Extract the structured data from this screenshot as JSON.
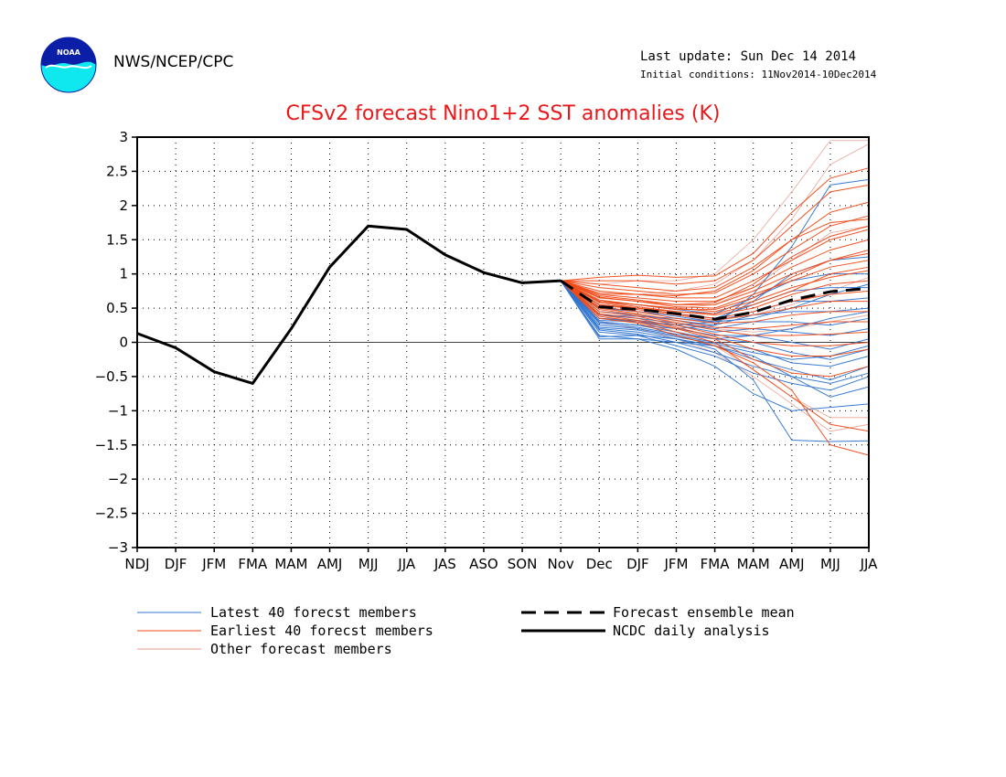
{
  "header": {
    "agency": "NWS/NCEP/CPC",
    "last_update": "Last update: Sun Dec 14 2014",
    "initial_conditions": "Initial conditions: 11Nov2014-10Dec2014"
  },
  "logo": {
    "text": "NOAA"
  },
  "colors": {
    "latest": "#2f74d0",
    "earliest": "#f04a17",
    "other": "#e59a8b",
    "title": "#e8191a",
    "axis": "#000000"
  },
  "chart_data": {
    "type": "line",
    "title": "CFSv2 forecast Nino1+2 SST anomalies (K)",
    "xlabel": "",
    "ylabel": "",
    "categories": [
      "NDJ",
      "DJF",
      "JFM",
      "FMA",
      "MAM",
      "AMJ",
      "MJJ",
      "JJA",
      "JAS",
      "ASO",
      "SON",
      "Nov",
      "Dec",
      "DJF",
      "JFM",
      "FMA",
      "MAM",
      "AMJ",
      "MJJ",
      "JJA"
    ],
    "ylim": [
      -3,
      3
    ],
    "yticks": [
      3,
      2.5,
      2,
      1.5,
      1,
      0.5,
      0,
      -0.5,
      -1,
      -1.5,
      -2,
      -2.5,
      -3
    ],
    "grid": true,
    "legend_position": "bottom",
    "legend": {
      "latest": "Latest 40 forecst members",
      "earliest": "Earliest 40 forecst members",
      "other": "Other forecast members",
      "mean": "Forecast ensemble mean",
      "analysis": "NCDC daily analysis"
    },
    "analysis": {
      "x": [
        "NDJ",
        "DJF",
        "JFM",
        "FMA",
        "MAM",
        "AMJ",
        "MJJ",
        "JJA",
        "JAS",
        "ASO",
        "SON",
        "Nov"
      ],
      "values": [
        0.13,
        -0.08,
        -0.43,
        -0.6,
        0.2,
        1.1,
        1.7,
        1.65,
        1.28,
        1.02,
        0.87,
        0.9
      ]
    },
    "ensemble_mean": {
      "x": [
        "Nov",
        "Dec",
        "DJF",
        "JFM",
        "FMA",
        "MAM",
        "AMJ",
        "MJJ",
        "JJA"
      ],
      "values": [
        0.9,
        0.52,
        0.48,
        0.42,
        0.34,
        0.44,
        0.62,
        0.74,
        0.79
      ]
    },
    "member_x": [
      "Nov",
      "Dec",
      "DJF",
      "JFM",
      "FMA",
      "MAM",
      "AMJ",
      "MJJ",
      "JJA"
    ],
    "members": [
      {
        "group": "latest",
        "values": [
          0.9,
          0.08,
          0.1,
          0.05,
          -0.1,
          -0.55,
          -1.43,
          -1.45,
          -1.44
        ]
      },
      {
        "group": "latest",
        "values": [
          0.9,
          0.1,
          0.05,
          -0.1,
          -0.35,
          -0.75,
          -1.0,
          -0.95,
          -0.9
        ]
      },
      {
        "group": "latest",
        "values": [
          0.9,
          0.15,
          0.1,
          -0.05,
          -0.2,
          -0.45,
          -0.6,
          -0.7,
          -0.5
        ]
      },
      {
        "group": "latest",
        "values": [
          0.9,
          0.2,
          0.15,
          0.05,
          -0.05,
          -0.25,
          -0.4,
          -0.55,
          -0.35
        ]
      },
      {
        "group": "latest",
        "values": [
          0.9,
          0.25,
          0.2,
          0.1,
          0.0,
          -0.1,
          -0.3,
          -0.35,
          -0.2
        ]
      },
      {
        "group": "latest",
        "values": [
          0.9,
          0.3,
          0.25,
          0.15,
          0.05,
          0.0,
          -0.15,
          -0.25,
          -0.1
        ]
      },
      {
        "group": "latest",
        "values": [
          0.9,
          0.32,
          0.3,
          0.2,
          0.1,
          0.1,
          0.0,
          -0.1,
          0.05
        ]
      },
      {
        "group": "latest",
        "values": [
          0.9,
          0.35,
          0.32,
          0.25,
          0.15,
          0.2,
          0.15,
          0.1,
          0.2
        ]
      },
      {
        "group": "latest",
        "values": [
          0.9,
          0.4,
          0.35,
          0.28,
          0.2,
          0.3,
          0.3,
          0.25,
          0.35
        ]
      },
      {
        "group": "latest",
        "values": [
          0.9,
          0.45,
          0.4,
          0.32,
          0.25,
          0.4,
          0.45,
          0.45,
          0.5
        ]
      },
      {
        "group": "latest",
        "values": [
          0.9,
          0.5,
          0.45,
          0.38,
          0.3,
          0.45,
          0.6,
          0.6,
          0.65
        ]
      },
      {
        "group": "latest",
        "values": [
          0.9,
          0.55,
          0.5,
          0.42,
          0.35,
          0.55,
          0.75,
          0.8,
          0.8
        ]
      },
      {
        "group": "latest",
        "values": [
          0.9,
          0.6,
          0.55,
          0.48,
          0.42,
          0.65,
          0.9,
          1.0,
          1.0
        ]
      },
      {
        "group": "latest",
        "values": [
          0.9,
          0.35,
          0.3,
          0.25,
          0.3,
          0.6,
          1.0,
          1.2,
          1.25
        ]
      },
      {
        "group": "latest",
        "values": [
          0.9,
          0.3,
          0.25,
          0.2,
          0.25,
          0.7,
          1.4,
          2.3,
          2.38
        ]
      },
      {
        "group": "latest",
        "values": [
          0.9,
          0.28,
          0.22,
          0.12,
          0.05,
          0.1,
          0.2,
          0.35,
          0.45
        ]
      },
      {
        "group": "latest",
        "values": [
          0.9,
          0.18,
          0.12,
          0.0,
          -0.15,
          -0.35,
          -0.5,
          -0.6,
          -0.45
        ]
      },
      {
        "group": "latest",
        "values": [
          0.9,
          0.22,
          0.18,
          0.08,
          -0.02,
          -0.15,
          -0.25,
          -0.2,
          -0.05
        ]
      },
      {
        "group": "latest",
        "values": [
          0.9,
          0.05,
          0.05,
          0.0,
          -0.05,
          -0.2,
          -0.5,
          -0.8,
          -0.65
        ]
      },
      {
        "group": "latest",
        "values": [
          0.9,
          0.4,
          0.38,
          0.35,
          0.3,
          0.35,
          0.5,
          0.7,
          0.85
        ]
      },
      {
        "group": "earliest",
        "values": [
          0.9,
          0.95,
          0.98,
          0.95,
          0.97,
          1.3,
          1.9,
          2.4,
          2.55
        ]
      },
      {
        "group": "earliest",
        "values": [
          0.9,
          0.9,
          0.9,
          0.85,
          0.9,
          1.2,
          1.7,
          2.2,
          2.3
        ]
      },
      {
        "group": "earliest",
        "values": [
          0.9,
          0.85,
          0.8,
          0.75,
          0.8,
          1.1,
          1.5,
          1.9,
          2.05
        ]
      },
      {
        "group": "earliest",
        "values": [
          0.9,
          0.8,
          0.75,
          0.7,
          0.72,
          1.0,
          1.35,
          1.7,
          1.85
        ]
      },
      {
        "group": "earliest",
        "values": [
          0.9,
          0.75,
          0.7,
          0.65,
          0.65,
          0.9,
          1.2,
          1.5,
          1.65
        ]
      },
      {
        "group": "earliest",
        "values": [
          0.9,
          0.7,
          0.65,
          0.6,
          0.6,
          0.8,
          1.1,
          1.35,
          1.5
        ]
      },
      {
        "group": "earliest",
        "values": [
          0.9,
          0.68,
          0.62,
          0.55,
          0.55,
          0.75,
          1.0,
          1.2,
          1.3
        ]
      },
      {
        "group": "earliest",
        "values": [
          0.9,
          0.65,
          0.6,
          0.52,
          0.5,
          0.7,
          0.9,
          1.1,
          1.2
        ]
      },
      {
        "group": "earliest",
        "values": [
          0.9,
          0.62,
          0.55,
          0.5,
          0.45,
          0.6,
          0.8,
          0.95,
          1.05
        ]
      },
      {
        "group": "earliest",
        "values": [
          0.9,
          0.6,
          0.52,
          0.45,
          0.4,
          0.5,
          0.7,
          0.85,
          0.9
        ]
      },
      {
        "group": "earliest",
        "values": [
          0.9,
          0.58,
          0.5,
          0.42,
          0.35,
          0.45,
          0.6,
          0.7,
          0.75
        ]
      },
      {
        "group": "earliest",
        "values": [
          0.9,
          0.55,
          0.48,
          0.4,
          0.32,
          0.4,
          0.5,
          0.6,
          0.6
        ]
      },
      {
        "group": "earliest",
        "values": [
          0.9,
          0.52,
          0.45,
          0.35,
          0.28,
          0.3,
          0.4,
          0.45,
          0.45
        ]
      },
      {
        "group": "earliest",
        "values": [
          0.9,
          0.5,
          0.42,
          0.32,
          0.22,
          0.2,
          0.25,
          0.3,
          0.3
        ]
      },
      {
        "group": "earliest",
        "values": [
          0.9,
          0.48,
          0.4,
          0.28,
          0.18,
          0.1,
          0.1,
          0.12,
          0.15
        ]
      },
      {
        "group": "earliest",
        "values": [
          0.9,
          0.45,
          0.38,
          0.25,
          0.12,
          0.0,
          -0.05,
          -0.05,
          0.0
        ]
      },
      {
        "group": "earliest",
        "values": [
          0.9,
          0.42,
          0.35,
          0.22,
          0.08,
          -0.1,
          -0.2,
          -0.2,
          -0.1
        ]
      },
      {
        "group": "earliest",
        "values": [
          0.9,
          0.4,
          0.32,
          0.2,
          0.05,
          -0.25,
          -0.45,
          -0.5,
          -0.35
        ]
      },
      {
        "group": "earliest",
        "values": [
          0.9,
          0.38,
          0.3,
          0.15,
          0.0,
          -0.4,
          -0.8,
          -1.2,
          -1.3
        ]
      },
      {
        "group": "earliest",
        "values": [
          0.9,
          0.35,
          0.28,
          0.1,
          -0.05,
          -0.3,
          -0.7,
          -1.5,
          -1.65
        ]
      },
      {
        "group": "earliest",
        "values": [
          0.9,
          0.72,
          0.7,
          0.68,
          0.75,
          1.05,
          1.5,
          1.75,
          1.8
        ]
      },
      {
        "group": "earliest",
        "values": [
          0.9,
          0.66,
          0.6,
          0.55,
          0.58,
          0.85,
          1.25,
          1.55,
          1.7
        ]
      },
      {
        "group": "earliest",
        "values": [
          0.9,
          0.6,
          0.55,
          0.48,
          0.48,
          0.65,
          0.95,
          1.2,
          1.35
        ]
      },
      {
        "group": "earliest",
        "values": [
          0.9,
          0.55,
          0.5,
          0.45,
          0.42,
          0.55,
          0.75,
          1.0,
          1.1
        ]
      },
      {
        "group": "other",
        "values": [
          0.9,
          0.85,
          0.9,
          0.9,
          1.0,
          1.5,
          2.2,
          2.95,
          2.95
        ]
      },
      {
        "group": "other",
        "values": [
          0.9,
          0.7,
          0.7,
          0.75,
          0.85,
          1.2,
          1.8,
          2.6,
          2.9
        ]
      },
      {
        "group": "other",
        "values": [
          0.9,
          0.6,
          0.55,
          0.5,
          0.55,
          0.8,
          1.2,
          1.6,
          1.7
        ]
      },
      {
        "group": "other",
        "values": [
          0.9,
          0.45,
          0.4,
          0.3,
          0.2,
          0.15,
          0.2,
          0.3,
          0.4
        ]
      },
      {
        "group": "other",
        "values": [
          0.9,
          0.35,
          0.3,
          0.15,
          -0.05,
          -0.4,
          -0.8,
          -1.1,
          -1.1
        ]
      },
      {
        "group": "other",
        "values": [
          0.9,
          0.3,
          0.2,
          0.05,
          -0.15,
          -0.5,
          -0.9,
          -1.3,
          -1.2
        ]
      },
      {
        "group": "other",
        "values": [
          0.9,
          0.5,
          0.45,
          0.4,
          0.35,
          0.4,
          0.55,
          0.75,
          0.95
        ]
      }
    ]
  }
}
